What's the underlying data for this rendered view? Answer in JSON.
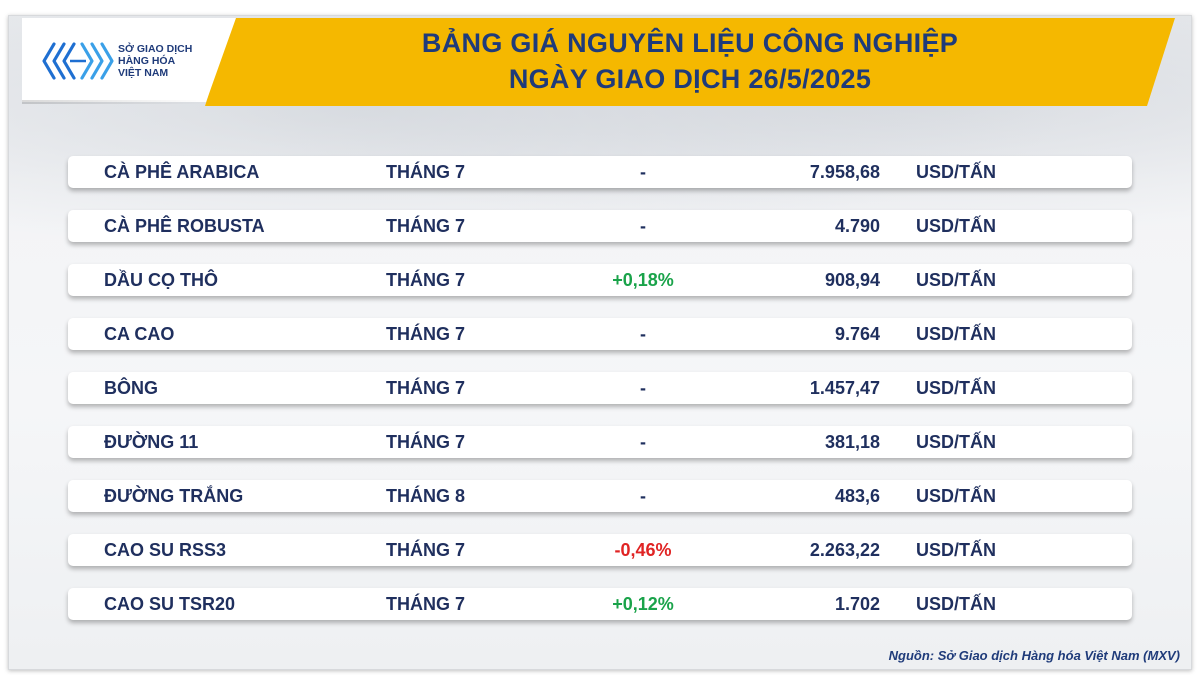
{
  "logo": {
    "line1": "SỞ GIAO DỊCH",
    "line2": "HÀNG HÓA",
    "line3": "VIỆT NAM"
  },
  "header": {
    "title_line1": "BẢNG GIÁ NGUYÊN LIỆU CÔNG NGHIỆP",
    "title_line2": "NGÀY GIAO DỊCH 26/5/2025"
  },
  "colors": {
    "banner": "#f5b800",
    "title_text": "#1f3b7a",
    "positive": "#1aa34a",
    "negative": "#e02424",
    "neutral": "#1f2f5e"
  },
  "rows": [
    {
      "name": "CÀ PHÊ ARABICA",
      "month": "THÁNG 7",
      "change": "-",
      "trend": "flat",
      "price": "7.958,68",
      "unit": "USD/TẤN"
    },
    {
      "name": "CÀ PHÊ ROBUSTA",
      "month": "THÁNG 7",
      "change": "-",
      "trend": "flat",
      "price": "4.790",
      "unit": "USD/TẤN"
    },
    {
      "name": "DẦU CỌ THÔ",
      "month": "THÁNG 7",
      "change": "+0,18%",
      "trend": "up",
      "price": "908,94",
      "unit": "USD/TẤN"
    },
    {
      "name": "CA CAO",
      "month": "THÁNG 7",
      "change": "-",
      "trend": "flat",
      "price": "9.764",
      "unit": "USD/TẤN"
    },
    {
      "name": "BÔNG",
      "month": "THÁNG 7",
      "change": "-",
      "trend": "flat",
      "price": "1.457,47",
      "unit": "USD/TẤN"
    },
    {
      "name": "ĐƯỜNG 11",
      "month": "THÁNG 7",
      "change": "-",
      "trend": "flat",
      "price": "381,18",
      "unit": "USD/TẤN"
    },
    {
      "name": "ĐƯỜNG TRẮNG",
      "month": "THÁNG 8",
      "change": "-",
      "trend": "flat",
      "price": "483,6",
      "unit": "USD/TẤN"
    },
    {
      "name": "CAO SU RSS3",
      "month": "THÁNG 7",
      "change": "-0,46%",
      "trend": "down",
      "price": "2.263,22",
      "unit": "USD/TẤN"
    },
    {
      "name": "CAO SU TSR20",
      "month": "THÁNG 7",
      "change": "+0,12%",
      "trend": "up",
      "price": "1.702",
      "unit": "USD/TẤN"
    }
  ],
  "footer": {
    "source": "Nguồn: Sở Giao dịch Hàng hóa Việt Nam (MXV)"
  }
}
